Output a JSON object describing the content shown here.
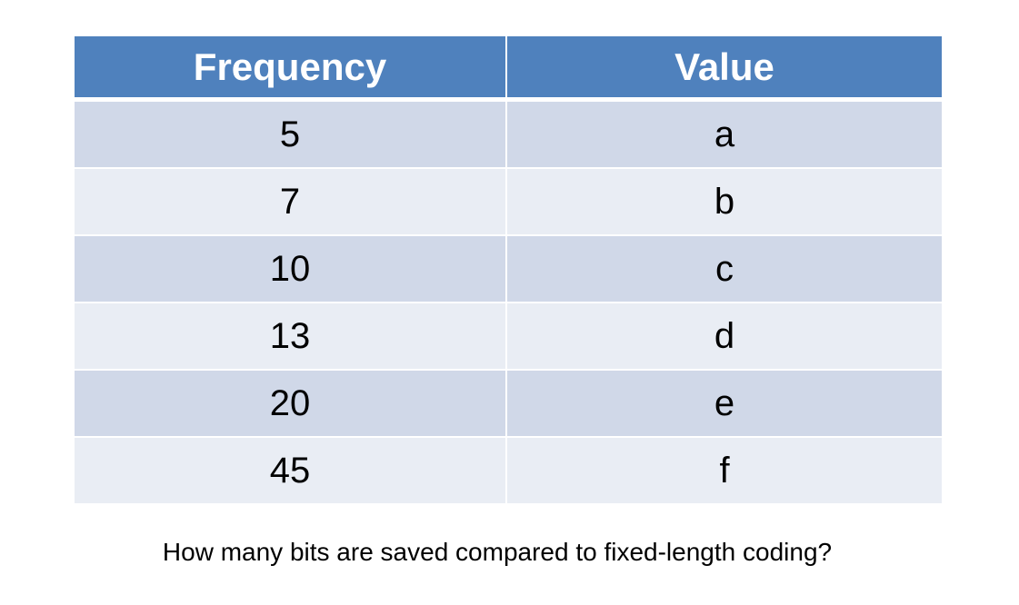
{
  "table": {
    "headers": [
      "Frequency",
      "Value"
    ],
    "rows": [
      {
        "frequency": "5",
        "value": "a"
      },
      {
        "frequency": "7",
        "value": "b"
      },
      {
        "frequency": "10",
        "value": "c"
      },
      {
        "frequency": "13",
        "value": "d"
      },
      {
        "frequency": "20",
        "value": "e"
      },
      {
        "frequency": "45",
        "value": "f"
      }
    ]
  },
  "question": "How many bits are saved compared to fixed-length coding?",
  "colors": {
    "header_bg": "#4f81bd",
    "row_odd_bg": "#d0d8e8",
    "row_even_bg": "#e9edf4"
  }
}
